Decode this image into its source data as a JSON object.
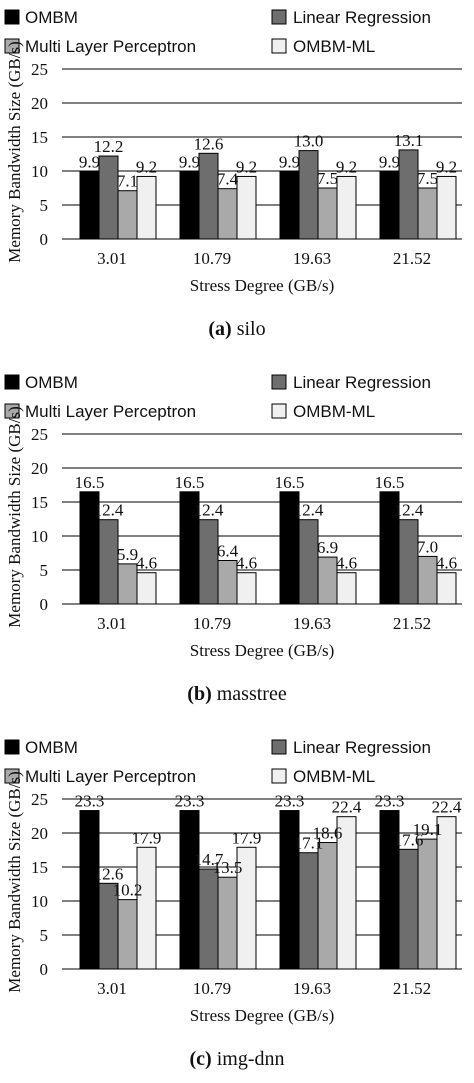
{
  "colors": {
    "OMBM": "#000000",
    "Linear Regression": "#6e6e6e",
    "Multi Layer Perceptron": "#a9a9a9",
    "OMBM-ML": "#f0f0f0"
  },
  "chart_data": [
    {
      "type": "bar",
      "caption_letter": "(a)",
      "caption_name": "silo",
      "xlabel": "Stress Degree (GB/s)",
      "ylabel": "Memory Bandwidth Size (GB/s)",
      "ylim": [
        0,
        25
      ],
      "yticks": [
        0,
        5,
        10,
        15,
        20,
        25
      ],
      "grid": "horizontal",
      "legend": "top",
      "categories": [
        "3.01",
        "10.79",
        "19.63",
        "21.52"
      ],
      "series": [
        {
          "name": "OMBM",
          "values": [
            9.9,
            9.9,
            9.9,
            9.9
          ],
          "labels": [
            "9.9",
            "9.9",
            "9.9",
            "9.9"
          ]
        },
        {
          "name": "Linear Regression",
          "values": [
            12.2,
            12.6,
            13.0,
            13.1
          ],
          "labels": [
            "12.2",
            "12.6",
            "13.0",
            "13.1"
          ]
        },
        {
          "name": "Multi Layer Perceptron",
          "values": [
            7.1,
            7.4,
            7.5,
            7.5
          ],
          "labels": [
            "7.1",
            "7.4",
            "7.5",
            "7.5"
          ]
        },
        {
          "name": "OMBM-ML",
          "values": [
            9.2,
            9.2,
            9.2,
            9.2
          ],
          "labels": [
            "9.2",
            "9.2",
            "9.2",
            "9.2"
          ]
        }
      ]
    },
    {
      "type": "bar",
      "caption_letter": "(b)",
      "caption_name": "masstree",
      "xlabel": "Stress Degree (GB/s)",
      "ylabel": "Memory Bandwidth Size (GB/s)",
      "ylim": [
        0,
        25
      ],
      "yticks": [
        0,
        5,
        10,
        15,
        20,
        25
      ],
      "grid": "horizontal",
      "legend": "top",
      "categories": [
        "3.01",
        "10.79",
        "19.63",
        "21.52"
      ],
      "series": [
        {
          "name": "OMBM",
          "values": [
            16.5,
            16.5,
            16.5,
            16.5
          ],
          "labels": [
            "16.5",
            "16.5",
            "16.5",
            "16.5"
          ]
        },
        {
          "name": "Linear Regression",
          "values": [
            12.4,
            12.4,
            12.4,
            12.4
          ],
          "labels": [
            "12.4",
            "12.4",
            "12.4",
            "12.4"
          ]
        },
        {
          "name": "Multi Layer Perceptron",
          "values": [
            5.9,
            6.4,
            6.9,
            7.0
          ],
          "labels": [
            "5.9",
            "6.4",
            "6.9",
            "7.0"
          ]
        },
        {
          "name": "OMBM-ML",
          "values": [
            4.6,
            4.6,
            4.6,
            4.6
          ],
          "labels": [
            "4.6",
            "4.6",
            "4.6",
            "4.6"
          ]
        }
      ]
    },
    {
      "type": "bar",
      "caption_letter": "(c)",
      "caption_name": "img-dnn",
      "xlabel": "Stress Degree (GB/s)",
      "ylabel": "Memory Bandwidth Size (GB/s)",
      "ylim": [
        0,
        25
      ],
      "yticks": [
        0,
        5,
        10,
        15,
        20,
        25
      ],
      "grid": "horizontal",
      "legend": "top",
      "categories": [
        "3.01",
        "10.79",
        "19.63",
        "21.52"
      ],
      "series": [
        {
          "name": "OMBM",
          "values": [
            23.3,
            23.3,
            23.3,
            23.3
          ],
          "labels": [
            "23.3",
            "23.3",
            "23.3",
            "23.3"
          ]
        },
        {
          "name": "Linear Regression",
          "values": [
            12.6,
            14.7,
            17.1,
            17.6
          ],
          "labels": [
            "12.6",
            "14.7",
            "17.1",
            "17.6"
          ]
        },
        {
          "name": "Multi Layer Perceptron",
          "values": [
            10.2,
            13.5,
            18.6,
            19.1
          ],
          "labels": [
            "10.2",
            "13.5",
            "18.6",
            "19.1"
          ]
        },
        {
          "name": "OMBM-ML",
          "values": [
            17.9,
            17.9,
            22.4,
            22.4
          ],
          "labels": [
            "17.9",
            "17.9",
            "22.4",
            "22.4"
          ]
        }
      ]
    }
  ]
}
